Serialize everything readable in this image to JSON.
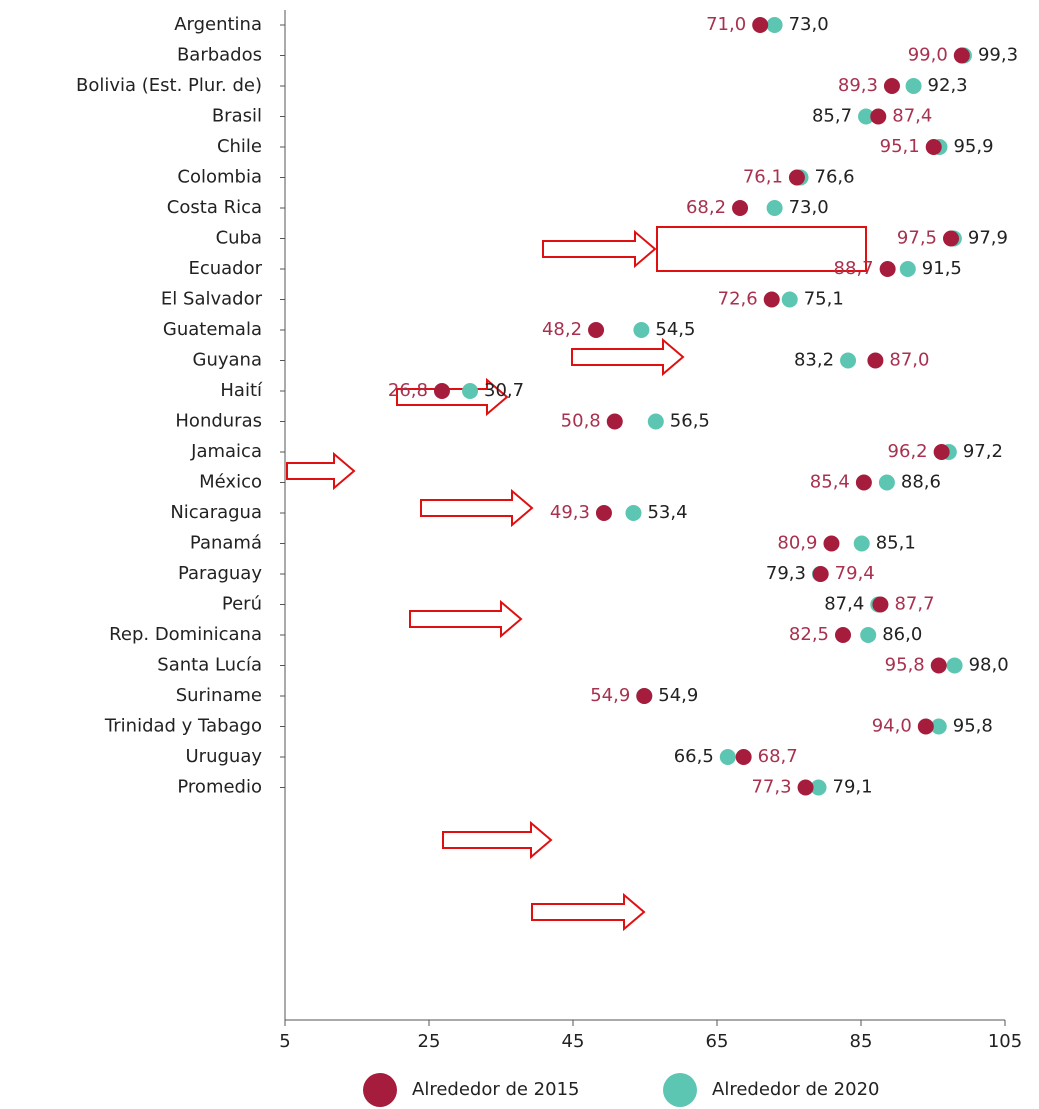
{
  "chart_data": {
    "type": "dot",
    "categories": [
      "Argentina",
      "Barbados",
      "Bolivia (Est. Plur. de)",
      "Brasil",
      "Chile",
      "Colombia",
      "Costa Rica",
      "Cuba",
      "Ecuador",
      "El Salvador",
      "Guatemala",
      "Guyana",
      "Haití",
      "Honduras",
      "Jamaica",
      "México",
      "Nicaragua",
      "Panamá",
      "Paraguay",
      "Perú",
      "Rep. Dominicana",
      "Santa Lucía",
      "Suriname",
      "Trinidad y Tabago",
      "Uruguay",
      "Promedio"
    ],
    "series": [
      {
        "name": "Alrededor de 2015",
        "color": "#a61c3c",
        "label_color": "#a8314f",
        "values": [
          71.0,
          99.0,
          89.3,
          87.4,
          95.1,
          76.1,
          68.2,
          97.5,
          88.7,
          72.6,
          48.2,
          87.0,
          26.8,
          50.8,
          96.2,
          85.4,
          49.3,
          80.9,
          79.4,
          87.7,
          82.5,
          95.8,
          54.9,
          94.0,
          68.7,
          77.3
        ],
        "value_labels": [
          "71,0",
          "99,0",
          "89,3",
          "87,4",
          "95,1",
          "76,1",
          "68,2",
          "97,5",
          "88,7",
          "72,6",
          "48,2",
          "87,0",
          "26,8",
          "50,8",
          "96,2",
          "85,4",
          "49,3",
          "80,9",
          "79,4",
          "87,7",
          "82,5",
          "95,8",
          "54,9",
          "94,0",
          "68,7",
          "77,3"
        ]
      },
      {
        "name": "Alrededor de 2020",
        "color": "#5cc6b2",
        "label_color": "#222222",
        "values": [
          73.0,
          99.3,
          92.3,
          85.7,
          95.9,
          76.6,
          73.0,
          97.9,
          91.5,
          75.1,
          54.5,
          83.2,
          30.7,
          56.5,
          97.2,
          88.6,
          53.4,
          85.1,
          79.3,
          87.4,
          86.0,
          98.0,
          54.9,
          95.8,
          66.5,
          79.1
        ],
        "value_labels": [
          "73,0",
          "99,3",
          "92,3",
          "85,7",
          "95,9",
          "76,6",
          "73,0",
          "97,9",
          "91,5",
          "75,1",
          "54,5",
          "83,2",
          "30,7",
          "56,5",
          "97,2",
          "88,6",
          "53,4",
          "85,1",
          "79,3",
          "87,4",
          "86,0",
          "98,0",
          "54,9",
          "95,8",
          "66,5",
          "79,1"
        ]
      }
    ],
    "xlim": [
      5,
      105
    ],
    "xticks": [
      5,
      25,
      45,
      65,
      85,
      105
    ]
  }
}
